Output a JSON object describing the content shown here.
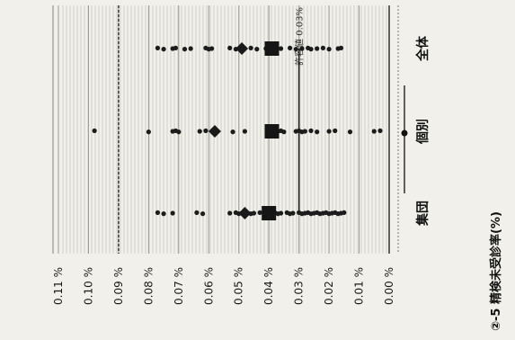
{
  "chart_data": {
    "type": "scatter",
    "title": "②-5 精検未受診率(%)",
    "orientation": "rotated-90-ccw",
    "ylim": [
      0.0,
      0.11
    ],
    "yticks": [
      "0.00 %",
      "0.01 %",
      "0.02 %",
      "0.03 %",
      "0.04 %",
      "0.05 %",
      "0.06 %",
      "0.07 %",
      "0.08 %",
      "0.09 %",
      "0.10 %",
      "0.11 %"
    ],
    "categories": [
      "集団",
      "個別",
      "全体"
    ],
    "series": [
      {
        "marker": "small-dot",
        "values": [
          [
            0.015,
            0.016,
            0.017,
            0.018,
            0.019,
            0.02,
            0.021,
            0.022,
            0.023,
            0.024,
            0.025,
            0.026,
            0.027,
            0.028,
            0.029,
            0.03,
            0.032,
            0.033,
            0.034,
            0.036,
            0.037,
            0.038,
            0.039,
            0.041,
            0.043,
            0.045,
            0.046,
            0.048,
            0.049,
            0.05,
            0.051,
            0.053,
            0.062,
            0.064,
            0.072,
            0.075,
            0.077
          ],
          [
            0.003,
            0.005,
            0.013,
            0.018,
            0.02,
            0.024,
            0.026,
            0.028,
            0.029,
            0.03,
            0.031,
            0.035,
            0.036,
            0.037,
            0.038,
            0.04,
            0.048,
            0.052,
            0.061,
            0.063,
            0.07,
            0.071,
            0.072,
            0.08,
            0.098
          ],
          [
            0.016,
            0.017,
            0.02,
            0.022,
            0.024,
            0.026,
            0.027,
            0.029,
            0.031,
            0.033,
            0.036,
            0.038,
            0.039,
            0.041,
            0.044,
            0.046,
            0.049,
            0.051,
            0.053,
            0.059,
            0.06,
            0.061,
            0.066,
            0.068,
            0.071,
            0.072,
            0.075,
            0.077
          ]
        ]
      },
      {
        "marker": "diamond",
        "values": [
          0.048,
          0.058,
          0.049
        ]
      },
      {
        "marker": "square",
        "values": [
          0.04,
          0.039,
          0.039
        ]
      }
    ],
    "reference_line": {
      "value": 0.03,
      "label": "許容値 0.03%"
    },
    "legend": {
      "position": "bottom",
      "marker": "line-with-dot"
    },
    "grid": true
  }
}
